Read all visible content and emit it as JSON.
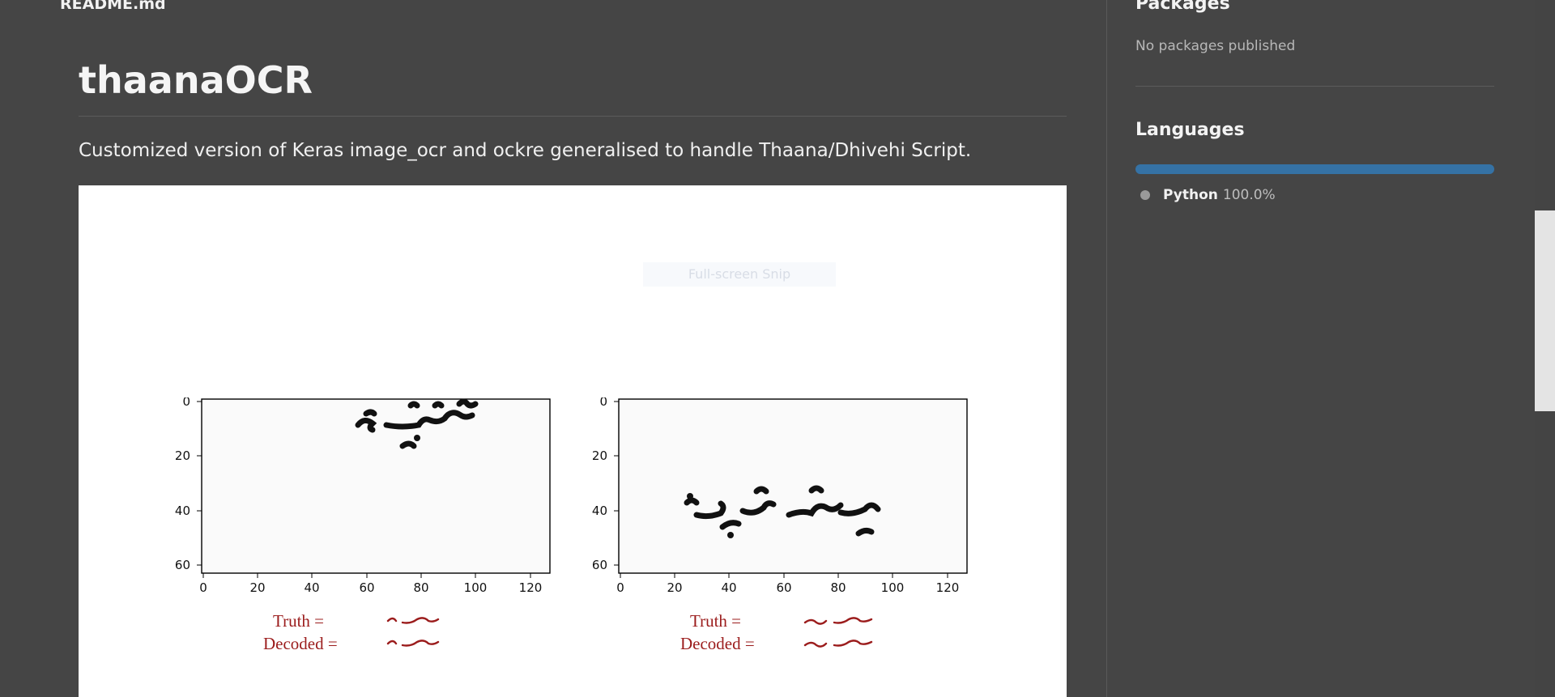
{
  "readme": {
    "file_name": "README.md",
    "title": "thaanaOCR",
    "description": "Customized version of Keras image_ocr and ockre generalised to handle Thaana/Dhivehi Script.",
    "snip_tooltip": "Full-screen Snip"
  },
  "sidebar": {
    "packages_heading": "Packages",
    "packages_empty": "No packages published",
    "languages_heading": "Languages",
    "languages": [
      {
        "name": "Python",
        "percent": "100.0%",
        "share": 100,
        "color": "#3572a5"
      }
    ]
  },
  "figure": {
    "plots": [
      {
        "y_ticks": [
          "0",
          "20",
          "40",
          "60"
        ],
        "x_ticks": [
          "0",
          "20",
          "40",
          "60",
          "80",
          "100",
          "120"
        ],
        "truth_label": "Truth  =",
        "decoded_label": "Decoded  ="
      },
      {
        "y_ticks": [
          "0",
          "20",
          "40",
          "60"
        ],
        "x_ticks": [
          "0",
          "20",
          "40",
          "60",
          "80",
          "100",
          "120"
        ],
        "truth_label": "Truth  =",
        "decoded_label": "Decoded  ="
      }
    ]
  }
}
